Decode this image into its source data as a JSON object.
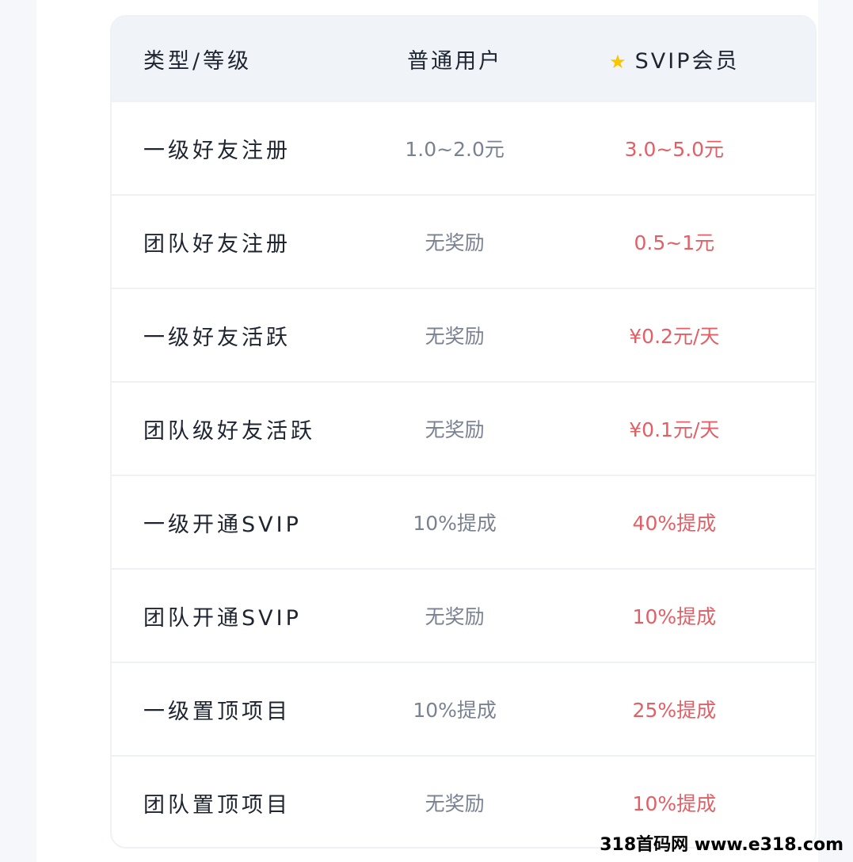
{
  "header": {
    "col1": "类型/等级",
    "col2": "普通用户",
    "col3": "SVIP会员",
    "col3_icon": "star-icon",
    "star_color": "#f7c600"
  },
  "rows": [
    {
      "type": "一级好友注册",
      "normal": "1.0~2.0元",
      "svip": "3.0~5.0元"
    },
    {
      "type": "团队好友注册",
      "normal": "无奖励",
      "svip": "0.5~1元"
    },
    {
      "type": "一级好友活跃",
      "normal": "无奖励",
      "svip": "¥0.2元/天"
    },
    {
      "type": "团队级好友活跃",
      "normal": "无奖励",
      "svip": "¥0.1元/天"
    },
    {
      "type": "一级开通SVIP",
      "normal": "10%提成",
      "svip": "40%提成"
    },
    {
      "type": "团队开通SVIP",
      "normal": "无奖励",
      "svip": "10%提成"
    },
    {
      "type": "一级置顶项目",
      "normal": "10%提成",
      "svip": "25%提成"
    },
    {
      "type": "团队置顶项目",
      "normal": "无奖励",
      "svip": "10%提成"
    }
  ],
  "watermark": "318首码网 www.e318.com",
  "colors": {
    "svip_value": "#e35f66",
    "normal_value": "#7a8292",
    "header_bg": "#f0f4f9"
  }
}
